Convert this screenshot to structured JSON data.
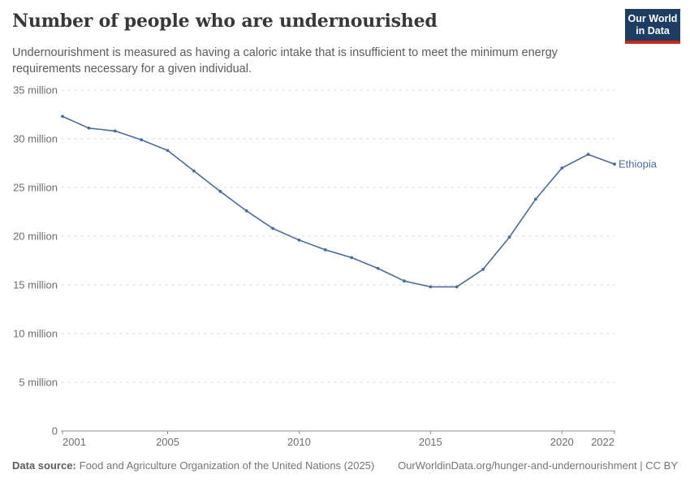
{
  "header": {
    "title": "Number of people who are undernourished",
    "subtitle": "Undernourishment is measured as having a caloric intake that is insufficient to meet the minimum energy requirements necessary for a given individual.",
    "logo": {
      "line1": "Our World",
      "line2": "in Data",
      "bg_color": "#1d3d63",
      "accent_color": "#c5281c"
    }
  },
  "chart_data": {
    "type": "line",
    "title": "Number of people who are undernourished",
    "unit": "million people",
    "x": [
      2001,
      2002,
      2003,
      2004,
      2005,
      2006,
      2007,
      2008,
      2009,
      2010,
      2011,
      2012,
      2013,
      2014,
      2015,
      2016,
      2017,
      2018,
      2019,
      2020,
      2021,
      2022
    ],
    "series": [
      {
        "name": "Ethiopia",
        "color": "#4c6a9c",
        "values": [
          32.3,
          31.1,
          30.8,
          29.9,
          28.8,
          26.7,
          24.6,
          22.6,
          20.8,
          19.6,
          18.6,
          17.8,
          16.7,
          15.4,
          14.8,
          14.8,
          16.6,
          19.9,
          23.8,
          27.0,
          28.4,
          27.4
        ]
      }
    ],
    "xlabel": "",
    "ylabel": "",
    "ylim": [
      0,
      35
    ],
    "yticks": [
      {
        "value": 0,
        "label": "0"
      },
      {
        "value": 5,
        "label": "5 million"
      },
      {
        "value": 10,
        "label": "10 million"
      },
      {
        "value": 15,
        "label": "15 million"
      },
      {
        "value": 20,
        "label": "20 million"
      },
      {
        "value": 25,
        "label": "25 million"
      },
      {
        "value": 30,
        "label": "30 million"
      },
      {
        "value": 35,
        "label": "35 million"
      }
    ],
    "xticks": [
      2001,
      2005,
      2010,
      2015,
      2020,
      2022
    ],
    "grid": "horizontal-dashed",
    "legend_position": "end-of-line-label",
    "axis_color": "#8f8f8f",
    "grid_color": "#dedede",
    "tick_label_color": "#6e6e6e"
  },
  "footer": {
    "datasource_label": "Data source:",
    "datasource_value": "Food and Agriculture Organization of the United Nations (2025)",
    "attribution": "OurWorldinData.org/hunger-and-undernourishment | CC BY"
  }
}
